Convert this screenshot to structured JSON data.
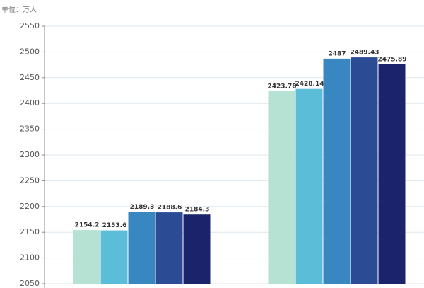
{
  "chart_data": {
    "type": "bar",
    "unit": "单位：万人",
    "categories": [
      null,
      null
    ],
    "series": [
      {
        "color": "#b6e2d3",
        "values": [
          2154.2,
          2423.78
        ]
      },
      {
        "color": "#5cbdd8",
        "values": [
          2153.6,
          2428.14
        ]
      },
      {
        "color": "#3887c0",
        "values": [
          2189.3,
          2487
        ]
      },
      {
        "color": "#2b4b94",
        "values": [
          2188.6,
          2489.43
        ]
      },
      {
        "color": "#1b246a",
        "values": [
          2184.3,
          2475.89
        ]
      }
    ],
    "ylim": [
      2050,
      2550
    ],
    "yticks": [
      2050,
      2100,
      2150,
      2200,
      2250,
      2300,
      2350,
      2400,
      2450,
      2500,
      2550
    ],
    "grid": true
  }
}
